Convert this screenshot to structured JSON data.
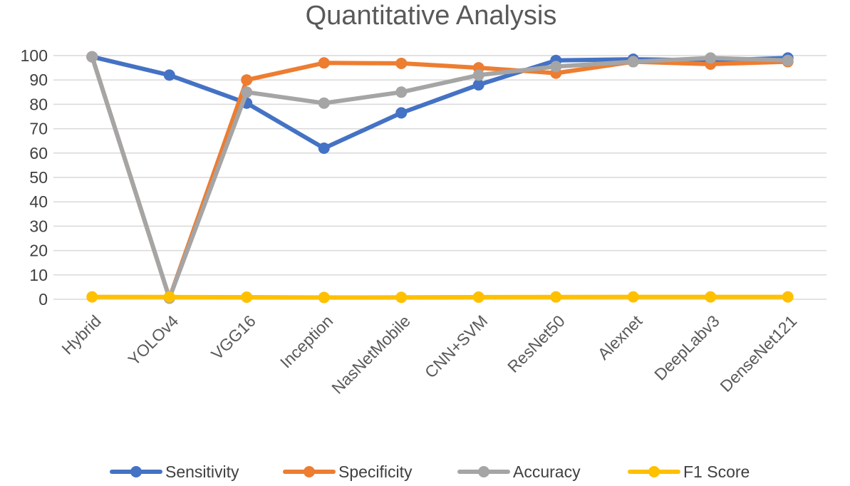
{
  "chart_data": {
    "type": "line",
    "title": "Quantitative Analysis",
    "xlabel": "",
    "ylabel": "",
    "ylim": [
      0,
      100
    ],
    "yticks": [
      0,
      10,
      20,
      30,
      40,
      50,
      60,
      70,
      80,
      90,
      100
    ],
    "grid": true,
    "legend_position": "bottom",
    "categories": [
      "Hybrid",
      "YOLOv4",
      "VGG16",
      "Inception",
      "NasNetMobile",
      "CNN+SVM",
      "ResNet50",
      "Alexnet",
      "DeepLabv3",
      "DenseNet121"
    ],
    "series": [
      {
        "name": "Sensitivity",
        "color": "#4472C4",
        "values": [
          99.5,
          92,
          80.5,
          62,
          76.5,
          88,
          98,
          98.5,
          98,
          99
        ]
      },
      {
        "name": "Specificity",
        "color": "#ED7D31",
        "values": [
          99.5,
          0.5,
          90,
          97,
          96.8,
          95,
          92.8,
          97.5,
          96.5,
          97.5
        ]
      },
      {
        "name": "Accuracy",
        "color": "#A5A5A5",
        "values": [
          99.5,
          0.5,
          85,
          80.5,
          85,
          92,
          95.5,
          97.5,
          99,
          98
        ]
      },
      {
        "name": "F1 Score",
        "color": "#FFC000",
        "values": [
          0.99,
          0.95,
          0.89,
          0.75,
          0.8,
          0.9,
          0.97,
          0.98,
          0.98,
          0.98
        ]
      }
    ]
  }
}
